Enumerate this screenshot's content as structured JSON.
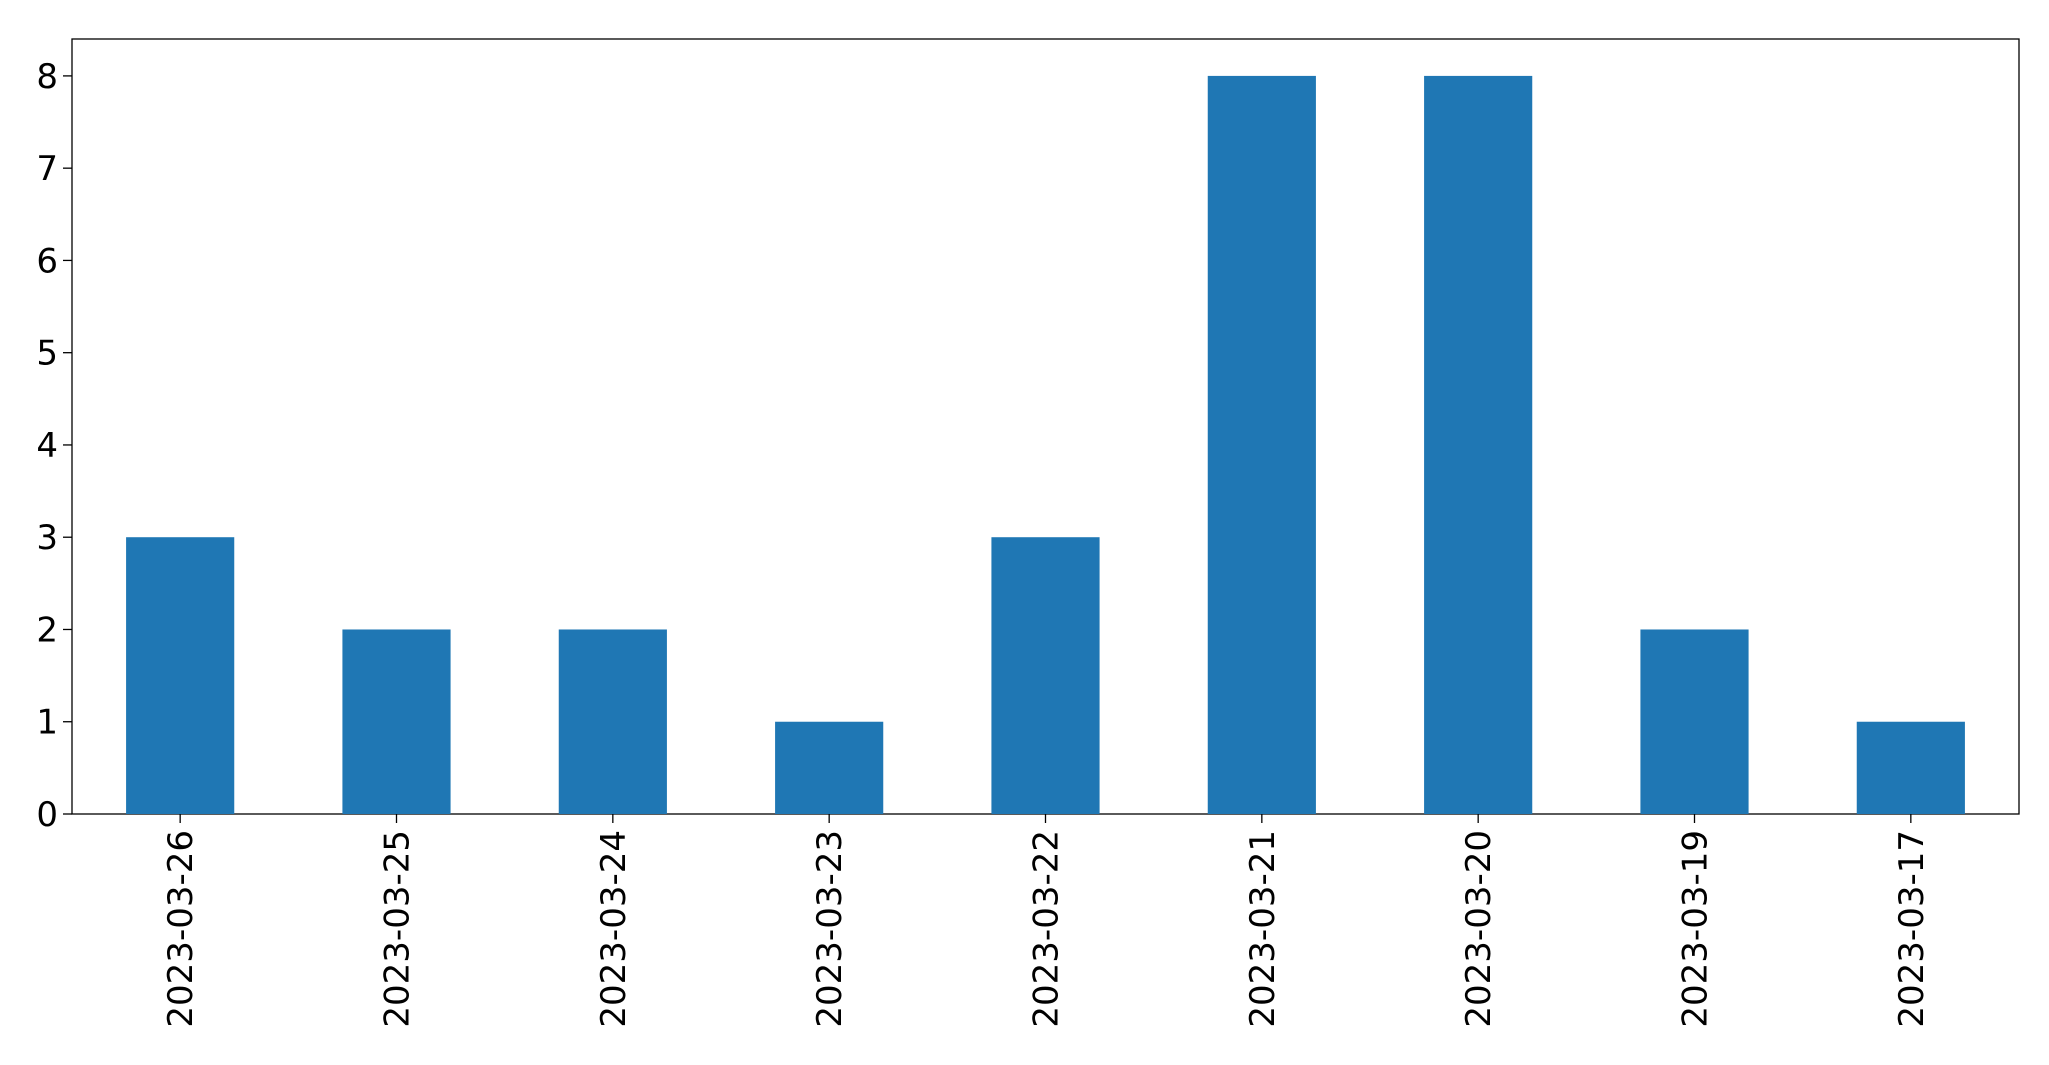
{
  "chart_data": {
    "type": "bar",
    "categories": [
      "2023-03-26",
      "2023-03-25",
      "2023-03-24",
      "2023-03-23",
      "2023-03-22",
      "2023-03-21",
      "2023-03-20",
      "2023-03-19",
      "2023-03-17"
    ],
    "values": [
      3,
      2,
      2,
      1,
      3,
      8,
      8,
      2,
      1
    ],
    "color": "#1f77b4",
    "ylim": [
      0,
      8.4
    ],
    "yticks": [
      0,
      1,
      2,
      3,
      4,
      5,
      6,
      7,
      8
    ],
    "grid": false
  }
}
